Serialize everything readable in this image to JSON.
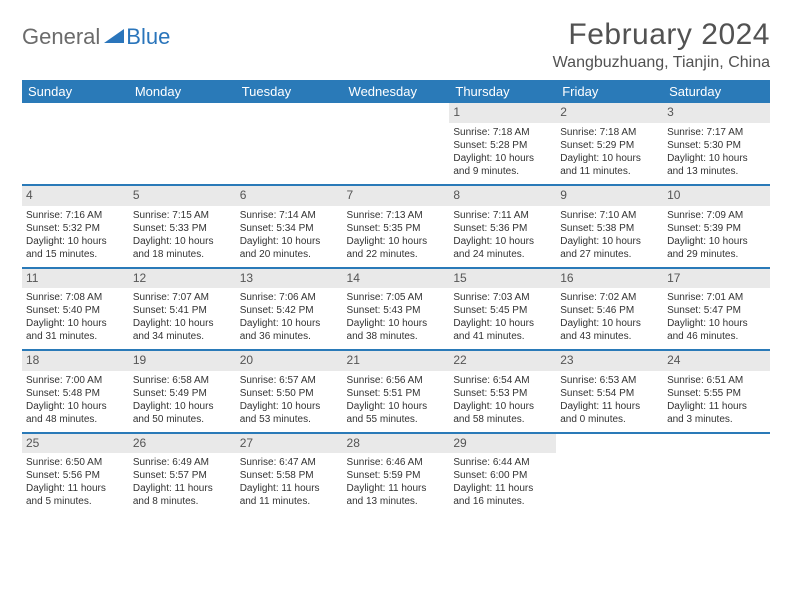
{
  "logo": {
    "text1": "General",
    "text2": "Blue"
  },
  "title": "February 2024",
  "location": "Wangbuzhuang, Tianjin, China",
  "colors": {
    "header_bg": "#2a7ab8",
    "header_text": "#ffffff",
    "daynum_bg": "#e9e9e9",
    "row_border": "#2a7ab8",
    "title_color": "#525252",
    "logo_gray": "#6b6b6b",
    "logo_blue": "#2a75bb"
  },
  "weekdays": [
    "Sunday",
    "Monday",
    "Tuesday",
    "Wednesday",
    "Thursday",
    "Friday",
    "Saturday"
  ],
  "weeks": [
    [
      {
        "n": "",
        "sr": "",
        "ss": "",
        "dl": ""
      },
      {
        "n": "",
        "sr": "",
        "ss": "",
        "dl": ""
      },
      {
        "n": "",
        "sr": "",
        "ss": "",
        "dl": ""
      },
      {
        "n": "",
        "sr": "",
        "ss": "",
        "dl": ""
      },
      {
        "n": "1",
        "sr": "Sunrise: 7:18 AM",
        "ss": "Sunset: 5:28 PM",
        "dl": "Daylight: 10 hours and 9 minutes."
      },
      {
        "n": "2",
        "sr": "Sunrise: 7:18 AM",
        "ss": "Sunset: 5:29 PM",
        "dl": "Daylight: 10 hours and 11 minutes."
      },
      {
        "n": "3",
        "sr": "Sunrise: 7:17 AM",
        "ss": "Sunset: 5:30 PM",
        "dl": "Daylight: 10 hours and 13 minutes."
      }
    ],
    [
      {
        "n": "4",
        "sr": "Sunrise: 7:16 AM",
        "ss": "Sunset: 5:32 PM",
        "dl": "Daylight: 10 hours and 15 minutes."
      },
      {
        "n": "5",
        "sr": "Sunrise: 7:15 AM",
        "ss": "Sunset: 5:33 PM",
        "dl": "Daylight: 10 hours and 18 minutes."
      },
      {
        "n": "6",
        "sr": "Sunrise: 7:14 AM",
        "ss": "Sunset: 5:34 PM",
        "dl": "Daylight: 10 hours and 20 minutes."
      },
      {
        "n": "7",
        "sr": "Sunrise: 7:13 AM",
        "ss": "Sunset: 5:35 PM",
        "dl": "Daylight: 10 hours and 22 minutes."
      },
      {
        "n": "8",
        "sr": "Sunrise: 7:11 AM",
        "ss": "Sunset: 5:36 PM",
        "dl": "Daylight: 10 hours and 24 minutes."
      },
      {
        "n": "9",
        "sr": "Sunrise: 7:10 AM",
        "ss": "Sunset: 5:38 PM",
        "dl": "Daylight: 10 hours and 27 minutes."
      },
      {
        "n": "10",
        "sr": "Sunrise: 7:09 AM",
        "ss": "Sunset: 5:39 PM",
        "dl": "Daylight: 10 hours and 29 minutes."
      }
    ],
    [
      {
        "n": "11",
        "sr": "Sunrise: 7:08 AM",
        "ss": "Sunset: 5:40 PM",
        "dl": "Daylight: 10 hours and 31 minutes."
      },
      {
        "n": "12",
        "sr": "Sunrise: 7:07 AM",
        "ss": "Sunset: 5:41 PM",
        "dl": "Daylight: 10 hours and 34 minutes."
      },
      {
        "n": "13",
        "sr": "Sunrise: 7:06 AM",
        "ss": "Sunset: 5:42 PM",
        "dl": "Daylight: 10 hours and 36 minutes."
      },
      {
        "n": "14",
        "sr": "Sunrise: 7:05 AM",
        "ss": "Sunset: 5:43 PM",
        "dl": "Daylight: 10 hours and 38 minutes."
      },
      {
        "n": "15",
        "sr": "Sunrise: 7:03 AM",
        "ss": "Sunset: 5:45 PM",
        "dl": "Daylight: 10 hours and 41 minutes."
      },
      {
        "n": "16",
        "sr": "Sunrise: 7:02 AM",
        "ss": "Sunset: 5:46 PM",
        "dl": "Daylight: 10 hours and 43 minutes."
      },
      {
        "n": "17",
        "sr": "Sunrise: 7:01 AM",
        "ss": "Sunset: 5:47 PM",
        "dl": "Daylight: 10 hours and 46 minutes."
      }
    ],
    [
      {
        "n": "18",
        "sr": "Sunrise: 7:00 AM",
        "ss": "Sunset: 5:48 PM",
        "dl": "Daylight: 10 hours and 48 minutes."
      },
      {
        "n": "19",
        "sr": "Sunrise: 6:58 AM",
        "ss": "Sunset: 5:49 PM",
        "dl": "Daylight: 10 hours and 50 minutes."
      },
      {
        "n": "20",
        "sr": "Sunrise: 6:57 AM",
        "ss": "Sunset: 5:50 PM",
        "dl": "Daylight: 10 hours and 53 minutes."
      },
      {
        "n": "21",
        "sr": "Sunrise: 6:56 AM",
        "ss": "Sunset: 5:51 PM",
        "dl": "Daylight: 10 hours and 55 minutes."
      },
      {
        "n": "22",
        "sr": "Sunrise: 6:54 AM",
        "ss": "Sunset: 5:53 PM",
        "dl": "Daylight: 10 hours and 58 minutes."
      },
      {
        "n": "23",
        "sr": "Sunrise: 6:53 AM",
        "ss": "Sunset: 5:54 PM",
        "dl": "Daylight: 11 hours and 0 minutes."
      },
      {
        "n": "24",
        "sr": "Sunrise: 6:51 AM",
        "ss": "Sunset: 5:55 PM",
        "dl": "Daylight: 11 hours and 3 minutes."
      }
    ],
    [
      {
        "n": "25",
        "sr": "Sunrise: 6:50 AM",
        "ss": "Sunset: 5:56 PM",
        "dl": "Daylight: 11 hours and 5 minutes."
      },
      {
        "n": "26",
        "sr": "Sunrise: 6:49 AM",
        "ss": "Sunset: 5:57 PM",
        "dl": "Daylight: 11 hours and 8 minutes."
      },
      {
        "n": "27",
        "sr": "Sunrise: 6:47 AM",
        "ss": "Sunset: 5:58 PM",
        "dl": "Daylight: 11 hours and 11 minutes."
      },
      {
        "n": "28",
        "sr": "Sunrise: 6:46 AM",
        "ss": "Sunset: 5:59 PM",
        "dl": "Daylight: 11 hours and 13 minutes."
      },
      {
        "n": "29",
        "sr": "Sunrise: 6:44 AM",
        "ss": "Sunset: 6:00 PM",
        "dl": "Daylight: 11 hours and 16 minutes."
      },
      {
        "n": "",
        "sr": "",
        "ss": "",
        "dl": ""
      },
      {
        "n": "",
        "sr": "",
        "ss": "",
        "dl": ""
      }
    ]
  ]
}
